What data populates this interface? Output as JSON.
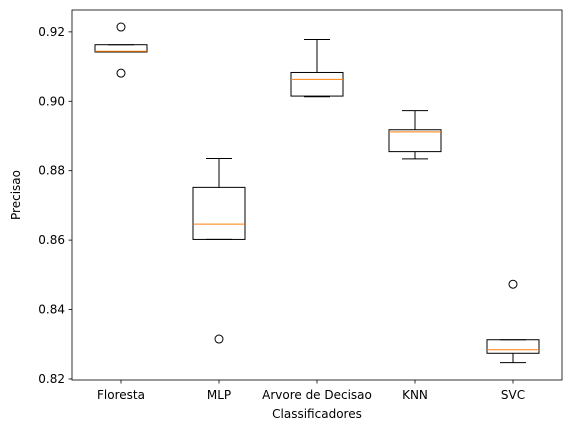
{
  "chart_data": {
    "type": "boxplot",
    "title": "",
    "xlabel": "Classificadores",
    "ylabel": "Precisao",
    "ylim": [
      0.8197,
      0.9263
    ],
    "yticks": [
      0.82,
      0.84,
      0.86,
      0.88,
      0.9,
      0.92
    ],
    "ytick_labels": [
      "0.82",
      "0.84",
      "0.86",
      "0.88",
      "0.90",
      "0.92"
    ],
    "grid": false,
    "categories": [
      "Floresta",
      "MLP",
      "Arvore de Decisao",
      "KNN",
      "SVC"
    ],
    "boxes": [
      {
        "category": "Floresta",
        "whisker_low": 0.9142,
        "q1": 0.9142,
        "median": 0.9144,
        "q3": 0.9163,
        "whisker_high": 0.9163,
        "outliers": [
          0.9214,
          0.9081
        ]
      },
      {
        "category": "MLP",
        "whisker_low": 0.8602,
        "q1": 0.8602,
        "median": 0.8646,
        "q3": 0.8752,
        "whisker_high": 0.8835,
        "outliers": [
          0.8315
        ]
      },
      {
        "category": "Arvore de Decisao",
        "whisker_low": 0.9013,
        "q1": 0.9015,
        "median": 0.9063,
        "q3": 0.9083,
        "whisker_high": 0.9178,
        "outliers": []
      },
      {
        "category": "KNN",
        "whisker_low": 0.8834,
        "q1": 0.8855,
        "median": 0.8912,
        "q3": 0.8918,
        "whisker_high": 0.8973,
        "outliers": []
      },
      {
        "category": "SVC",
        "whisker_low": 0.8247,
        "q1": 0.8274,
        "median": 0.8284,
        "q3": 0.8313,
        "whisker_high": 0.8313,
        "outliers": [
          0.8473
        ]
      }
    ],
    "colors": {
      "box": "#000000",
      "median": "#ff7f0e",
      "outlier_edge": "#000000"
    }
  }
}
